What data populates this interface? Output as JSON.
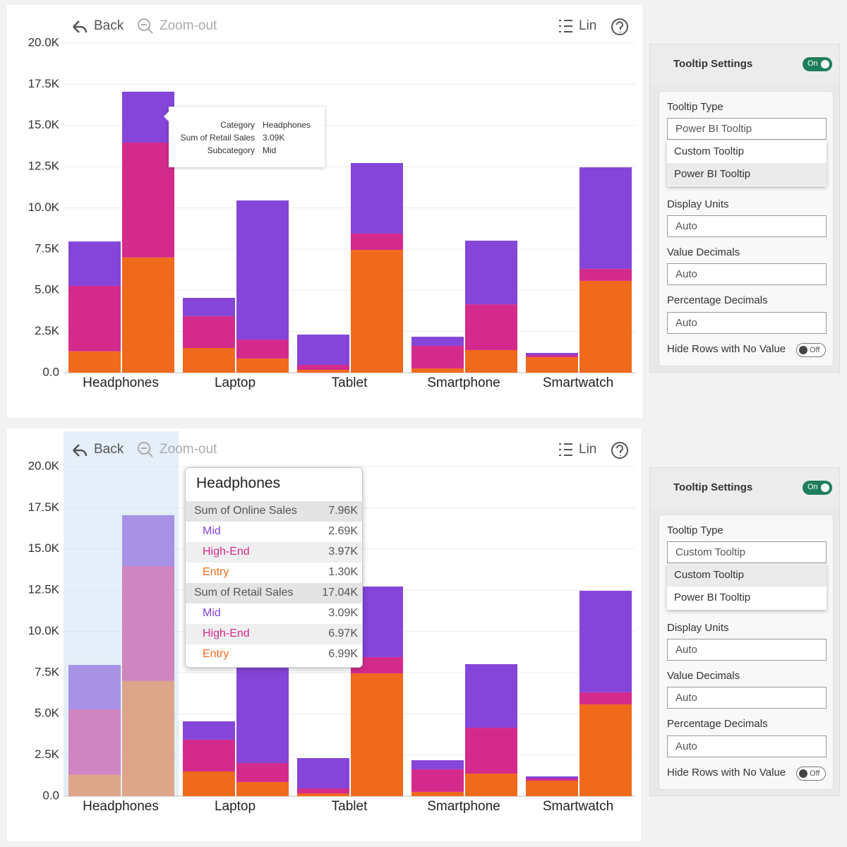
{
  "panels": [
    {
      "toolbar": {
        "back": "Back",
        "zoom": "Zoom-out",
        "scale": "Lin"
      },
      "tooltip": {
        "rows": [
          [
            "Category",
            "Headphones"
          ],
          [
            "Sum of Retail Sales",
            "3.09K"
          ],
          [
            "Subcategory",
            "Mid"
          ]
        ]
      },
      "settings": {
        "title": "Tooltip Settings",
        "toggle": "On",
        "fields": [
          {
            "label": "Tooltip Type",
            "value": "Power BI Tooltip",
            "options": [
              "Custom Tooltip",
              "Power BI Tooltip"
            ]
          },
          {
            "label": "Display Units",
            "value": "Auto"
          },
          {
            "label": "Value Decimals",
            "value": "Auto"
          },
          {
            "label": "Percentage Decimals",
            "value": "Auto"
          }
        ],
        "hide_rows": {
          "label": "Hide Rows with No Value",
          "toggle": "Off"
        }
      }
    },
    {
      "toolbar": {
        "back": "Back",
        "zoom": "Zoom-out",
        "scale": "Lin"
      },
      "tooltip": {
        "title": "Headphones",
        "groups": [
          {
            "label": "Sum of Online Sales",
            "value": "7.96K",
            "items": [
              {
                "label": "Mid",
                "value": "2.69K",
                "color": "#8445d8"
              },
              {
                "label": "High-End",
                "value": "3.97K",
                "color": "#d42a8c"
              },
              {
                "label": "Entry",
                "value": "1.30K",
                "color": "#f06a1e"
              }
            ]
          },
          {
            "label": "Sum of Retail Sales",
            "value": "17.04K",
            "items": [
              {
                "label": "Mid",
                "value": "3.09K",
                "color": "#8445d8"
              },
              {
                "label": "High-End",
                "value": "6.97K",
                "color": "#d42a8c"
              },
              {
                "label": "Entry",
                "value": "6.99K",
                "color": "#f06a1e"
              }
            ]
          }
        ]
      },
      "settings": {
        "title": "Tooltip Settings",
        "toggle": "On",
        "fields": [
          {
            "label": "Tooltip Type",
            "value": "Custom Tooltip",
            "options": [
              "Custom Tooltip",
              "Power BI Tooltip"
            ]
          },
          {
            "label": "Display Units",
            "value": "Auto"
          },
          {
            "label": "Value Decimals",
            "value": "Auto"
          },
          {
            "label": "Percentage Decimals",
            "value": "Auto"
          }
        ],
        "hide_rows": {
          "label": "Hide Rows with No Value",
          "toggle": "Off"
        }
      }
    }
  ],
  "chart_data": [
    {
      "type": "stacked_bar",
      "categories": [
        "Headphones",
        "Laptop",
        "Tablet",
        "Smartphone",
        "Smartwatch"
      ],
      "stacks": [
        {
          "segments": [
            {
              "color": "#f06a1e",
              "values": [
                1300,
                1500,
                170,
                260,
                940
              ]
            },
            {
              "color": "#d42a8c",
              "values": [
                3970,
                1930,
                300,
                1370,
                130
              ]
            },
            {
              "color": "#8445d8",
              "values": [
                2690,
                1110,
                1840,
                550,
                130
              ]
            }
          ]
        },
        {
          "segments": [
            {
              "color": "#f06a1e",
              "values": [
                6990,
                860,
                7450,
                1370,
                5570
              ]
            },
            {
              "color": "#d42a8c",
              "values": [
                6970,
                1150,
                990,
                2780,
                730
              ]
            },
            {
              "color": "#8445d8",
              "values": [
                3090,
                8440,
                4280,
                3860,
                6160
              ]
            }
          ]
        }
      ],
      "ylim": [
        0,
        20000
      ],
      "yticks": [
        {
          "value": 0,
          "label": "0.0"
        },
        {
          "value": 2500,
          "label": "2.5K"
        },
        {
          "value": 5000,
          "label": "5.0K"
        },
        {
          "value": 7500,
          "label": "7.5K"
        },
        {
          "value": 10000,
          "label": "10.0K"
        },
        {
          "value": 12500,
          "label": "12.5K"
        },
        {
          "value": 15000,
          "label": "15.0K"
        },
        {
          "value": 17500,
          "label": "17.5K"
        },
        {
          "value": 20000,
          "label": "20.0K"
        }
      ],
      "grid": true
    },
    {
      "type": "stacked_bar",
      "categories": [
        "Headphones",
        "Laptop",
        "Tablet",
        "Smartphone",
        "Smartwatch"
      ],
      "stacks": [
        {
          "segments": [
            {
              "color": "#f06a1e",
              "values": [
                1300,
                1500,
                170,
                260,
                940
              ]
            },
            {
              "color": "#d42a8c",
              "values": [
                3970,
                1930,
                300,
                1370,
                130
              ]
            },
            {
              "color": "#8445d8",
              "values": [
                2690,
                1110,
                1840,
                550,
                130
              ]
            }
          ]
        },
        {
          "segments": [
            {
              "color": "#f06a1e",
              "values": [
                6990,
                860,
                7450,
                1370,
                5570
              ]
            },
            {
              "color": "#d42a8c",
              "values": [
                6970,
                1150,
                990,
                2780,
                730
              ]
            },
            {
              "color": "#8445d8",
              "values": [
                3090,
                8440,
                4280,
                3860,
                6160
              ]
            }
          ]
        }
      ],
      "ylim": [
        0,
        20000
      ],
      "yticks": [
        {
          "value": 0,
          "label": "0.0"
        },
        {
          "value": 2500,
          "label": "2.5K"
        },
        {
          "value": 5000,
          "label": "5.0K"
        },
        {
          "value": 7500,
          "label": "7.5K"
        },
        {
          "value": 10000,
          "label": "10.0K"
        },
        {
          "value": 12500,
          "label": "12.5K"
        },
        {
          "value": 15000,
          "label": "15.0K"
        },
        {
          "value": 17500,
          "label": "17.5K"
        },
        {
          "value": 20000,
          "label": "20.0K"
        }
      ],
      "grid": true
    }
  ]
}
